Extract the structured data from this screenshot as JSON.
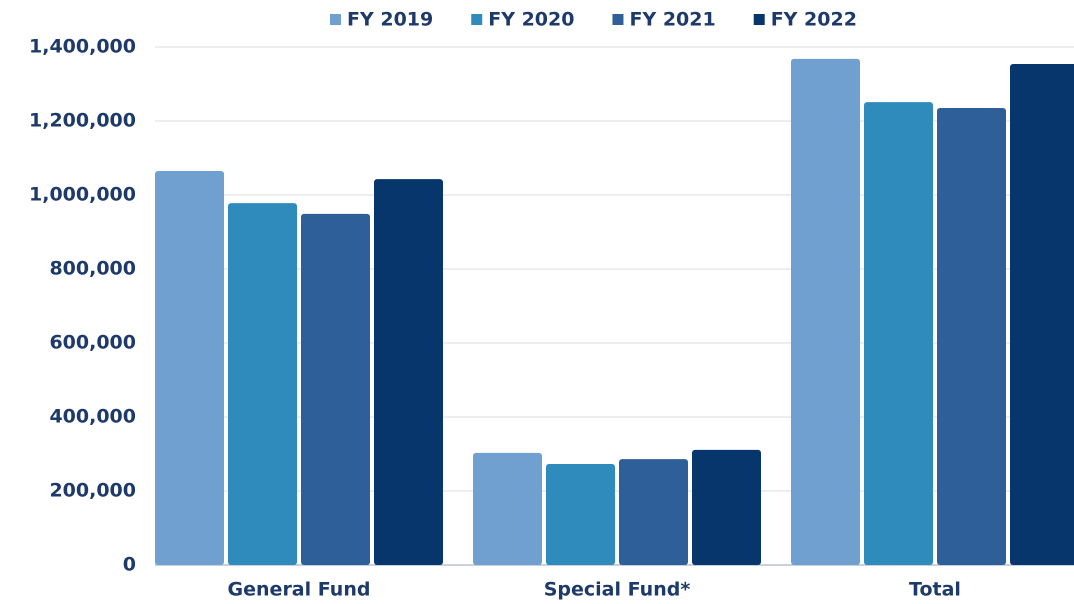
{
  "chart_data": {
    "type": "bar",
    "categories": [
      "General Fund",
      "Special Fund*",
      "Total"
    ],
    "series": [
      {
        "name": "FY 2019",
        "color": "#6fa0cf",
        "values": [
          1065000,
          303000,
          1368000
        ]
      },
      {
        "name": "FY 2020",
        "color": "#2e8bbb",
        "values": [
          978000,
          273000,
          1251000
        ]
      },
      {
        "name": "FY 2021",
        "color": "#2f5f98",
        "values": [
          949000,
          286000,
          1235000
        ]
      },
      {
        "name": "FY 2022",
        "color": "#06366b",
        "values": [
          1043000,
          311000,
          1354000
        ]
      }
    ],
    "ylim": [
      0,
      1400000
    ],
    "yticks": [
      0,
      {
        "value": 200000,
        "label": "200,000"
      },
      {
        "value": 400000,
        "label": "400,000"
      },
      {
        "value": 600000,
        "label": "600,000"
      },
      {
        "value": 800000,
        "label": "800,000"
      },
      {
        "value": 1000000,
        "label": "1,000,000"
      },
      {
        "value": 1200000,
        "label": "1,200,000"
      },
      {
        "value": 1400000,
        "label": "1,400,000"
      }
    ],
    "grid": true,
    "legend": "top"
  }
}
